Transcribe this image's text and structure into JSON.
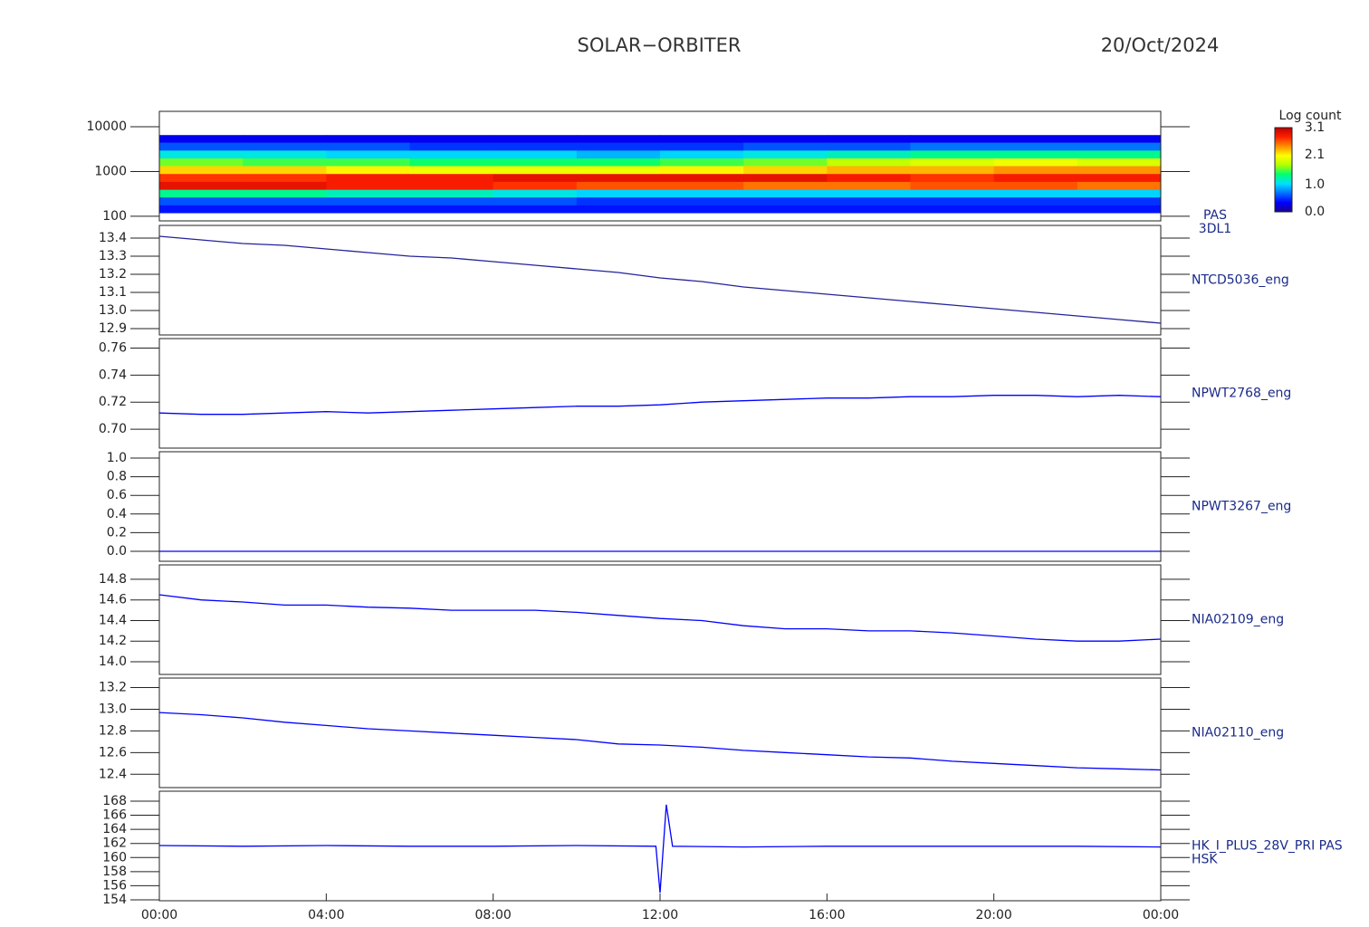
{
  "title": "SOLAR−ORBITER",
  "date": "20/Oct/2024",
  "chart_data": [
    {
      "type": "spectrogram",
      "labels": [
        "PAS",
        "3DL1"
      ],
      "log_y": true,
      "ylim": [
        79,
        22000
      ],
      "yticks": [
        10000,
        1000,
        100
      ],
      "xlim": [
        0,
        24
      ],
      "times": [
        0,
        2,
        4,
        6,
        8,
        10,
        12,
        14,
        16,
        18,
        20,
        22,
        24
      ],
      "energy_bins": [
        120,
        180,
        270,
        400,
        600,
        900,
        1350,
        2000,
        3000,
        4500,
        6500
      ],
      "counts": [
        [
          0.4,
          0.6,
          1.3,
          2.9,
          2.7,
          2.2,
          1.6,
          1.1,
          0.6,
          0.3
        ],
        [
          0.4,
          0.6,
          1.3,
          2.9,
          2.7,
          2.2,
          1.5,
          1.1,
          0.6,
          0.3
        ],
        [
          0.4,
          0.6,
          1.2,
          2.8,
          2.8,
          2.1,
          1.5,
          1.0,
          0.6,
          0.3
        ],
        [
          0.4,
          0.6,
          1.2,
          2.8,
          2.8,
          2.0,
          1.4,
          1.0,
          0.5,
          0.3
        ],
        [
          0.4,
          0.6,
          1.1,
          2.7,
          2.9,
          2.0,
          1.4,
          1.0,
          0.5,
          0.3
        ],
        [
          0.4,
          0.5,
          1.0,
          2.6,
          2.9,
          2.0,
          1.4,
          0.9,
          0.5,
          0.3
        ],
        [
          0.4,
          0.5,
          1.0,
          2.6,
          2.9,
          2.1,
          1.5,
          1.0,
          0.5,
          0.3
        ],
        [
          0.4,
          0.5,
          1.0,
          2.5,
          2.9,
          2.2,
          1.6,
          1.1,
          0.6,
          0.3
        ],
        [
          0.4,
          0.5,
          1.0,
          2.5,
          2.8,
          2.3,
          1.8,
          1.2,
          0.6,
          0.3
        ],
        [
          0.4,
          0.5,
          1.0,
          2.6,
          2.7,
          2.3,
          1.9,
          1.3,
          0.7,
          0.3
        ],
        [
          0.4,
          0.5,
          1.0,
          2.6,
          2.8,
          2.4,
          2.0,
          1.3,
          0.7,
          0.3
        ],
        [
          0.4,
          0.5,
          1.0,
          2.5,
          2.8,
          2.4,
          1.9,
          1.3,
          0.7,
          0.3
        ]
      ],
      "colorbar_title": "Log count",
      "clim": [
        0,
        3.1
      ],
      "cticks": [
        {
          "value": 3.1,
          "label": "3.1"
        },
        {
          "value": 2.1,
          "label": "2.1"
        },
        {
          "value": 1,
          "label": "1.0"
        },
        {
          "value": 0,
          "label": "0.0"
        }
      ],
      "colormap": [
        "#1a0090",
        "#0000ff",
        "#0070ff",
        "#00e0ff",
        "#00ff70",
        "#b0ff00",
        "#ffff00",
        "#ff9000",
        "#ff2000",
        "#c00000"
      ]
    },
    {
      "type": "line",
      "labels": [
        "NTCD5036_eng"
      ],
      "color": "#23239a",
      "xlim": [
        0,
        24
      ],
      "ylim": [
        12.865,
        13.47
      ],
      "yticks": [
        13.4,
        13.3,
        13.2,
        13.1,
        {
          "value": 13,
          "label": "13.0"
        },
        12.9
      ],
      "x": [
        0,
        1,
        2,
        3,
        4,
        5,
        6,
        7,
        8,
        9,
        10,
        11,
        12,
        13,
        14,
        15,
        16,
        17,
        18,
        19,
        20,
        21,
        22,
        23,
        24
      ],
      "values": [
        13.41,
        13.39,
        13.37,
        13.36,
        13.34,
        13.32,
        13.3,
        13.29,
        13.27,
        13.25,
        13.23,
        13.21,
        13.18,
        13.16,
        13.13,
        13.11,
        13.09,
        13.07,
        13.05,
        13.03,
        13.01,
        12.99,
        12.97,
        12.95,
        12.93
      ]
    },
    {
      "type": "line",
      "labels": [
        "NPWT2768_eng"
      ],
      "color": "#0000ff",
      "xlim": [
        0,
        24
      ],
      "ylim": [
        0.686,
        0.767
      ],
      "yticks": [
        0.76,
        0.74,
        0.72,
        {
          "value": 0.7,
          "label": "0.70"
        }
      ],
      "x": [
        0,
        1,
        2,
        3,
        4,
        5,
        6,
        7,
        8,
        9,
        10,
        11,
        12,
        13,
        14,
        15,
        16,
        17,
        18,
        19,
        20,
        21,
        22,
        23,
        24
      ],
      "values": [
        0.712,
        0.711,
        0.711,
        0.712,
        0.713,
        0.712,
        0.713,
        0.714,
        0.715,
        0.716,
        0.717,
        0.717,
        0.718,
        0.72,
        0.721,
        0.722,
        0.723,
        0.723,
        0.724,
        0.724,
        0.725,
        0.725,
        0.724,
        0.725,
        0.724
      ]
    },
    {
      "type": "line",
      "labels": [
        "NPWT3267_eng"
      ],
      "color": "#0000ff",
      "xlim": [
        0,
        24
      ],
      "ylim": [
        -0.107,
        1.068
      ],
      "yticks": [
        {
          "value": 1,
          "label": "1.0"
        },
        0.8,
        0.6,
        0.4,
        0.2,
        {
          "value": 0,
          "label": "0.0"
        }
      ],
      "x": [
        0,
        24
      ],
      "values": [
        0,
        0
      ]
    },
    {
      "type": "line",
      "labels": [
        "NIA02109_eng"
      ],
      "color": "#0000ff",
      "xlim": [
        0,
        24
      ],
      "ylim": [
        13.877,
        14.94
      ],
      "yticks": [
        14.8,
        14.6,
        14.4,
        14.2,
        {
          "value": 14,
          "label": "14.0"
        }
      ],
      "x": [
        0,
        1,
        2,
        3,
        4,
        5,
        6,
        7,
        8,
        9,
        10,
        11,
        12,
        13,
        14,
        15,
        16,
        17,
        18,
        19,
        20,
        21,
        22,
        23,
        24
      ],
      "values": [
        14.65,
        14.6,
        14.58,
        14.55,
        14.55,
        14.53,
        14.52,
        14.5,
        14.5,
        14.5,
        14.48,
        14.45,
        14.42,
        14.4,
        14.35,
        14.32,
        14.32,
        14.3,
        14.3,
        14.28,
        14.25,
        14.22,
        14.2,
        14.2,
        14.22
      ]
    },
    {
      "type": "line",
      "labels": [
        "NIA02110_eng"
      ],
      "color": "#0000ff",
      "xlim": [
        0,
        24
      ],
      "ylim": [
        12.277,
        13.288
      ],
      "yticks": [
        13.2,
        {
          "value": 13,
          "label": "13.0"
        },
        12.8,
        12.6,
        12.4
      ],
      "x": [
        0,
        1,
        2,
        3,
        4,
        5,
        6,
        7,
        8,
        9,
        10,
        11,
        12,
        13,
        14,
        15,
        16,
        17,
        18,
        19,
        20,
        21,
        22,
        23,
        24
      ],
      "values": [
        12.97,
        12.95,
        12.92,
        12.88,
        12.85,
        12.82,
        12.8,
        12.78,
        12.76,
        12.74,
        12.72,
        12.68,
        12.67,
        12.65,
        12.62,
        12.6,
        12.58,
        12.56,
        12.55,
        12.52,
        12.5,
        12.48,
        12.46,
        12.45,
        12.44
      ]
    },
    {
      "type": "line",
      "labels": [
        "HK_I_PLUS_28V_PRI PAS",
        "HSK"
      ],
      "color": "#0000ff",
      "xlim": [
        0,
        24
      ],
      "ylim": [
        153.87,
        169.41
      ],
      "yticks": [
        168,
        166,
        164,
        162,
        160,
        158,
        156,
        154
      ],
      "xticks": [
        {
          "value": 0,
          "label": "00:00"
        },
        {
          "value": 4,
          "label": "04:00"
        },
        {
          "value": 8,
          "label": "08:00"
        },
        {
          "value": 12,
          "label": "12:00"
        },
        {
          "value": 16,
          "label": "16:00"
        },
        {
          "value": 20,
          "label": "20:00"
        },
        {
          "value": 24,
          "label": "00:00"
        }
      ],
      "x": [
        0,
        2,
        4,
        6,
        8,
        10,
        11.9,
        12.0,
        12.15,
        12.3,
        14,
        16,
        18,
        20,
        22,
        24
      ],
      "values": [
        161.7,
        161.6,
        161.7,
        161.6,
        161.6,
        161.7,
        161.6,
        155,
        167.5,
        161.6,
        161.5,
        161.6,
        161.6,
        161.6,
        161.6,
        161.5
      ]
    }
  ]
}
